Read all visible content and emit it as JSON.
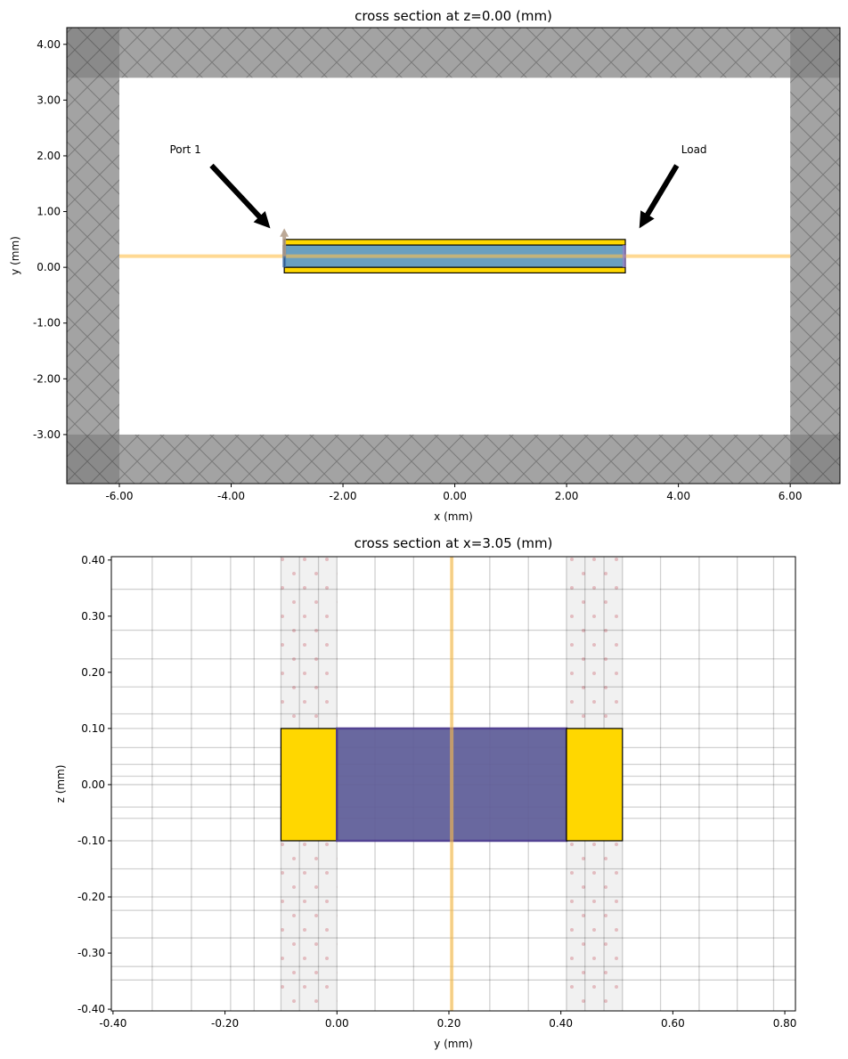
{
  "chart_data": [
    {
      "type": "diagram",
      "title": "cross section at z=0.00 (mm)",
      "xlabel": "x (mm)",
      "ylabel": "y (mm)",
      "xlim": [
        -6.94,
        6.89
      ],
      "ylim": [
        -3.88,
        4.3
      ],
      "xticks": [
        "-6.00",
        "-4.00",
        "-2.00",
        "0.00",
        "2.00",
        "4.00",
        "6.00"
      ],
      "xtick_values": [
        -6,
        -4,
        -2,
        0,
        2,
        4,
        6
      ],
      "yticks": [
        "4.00",
        "3.00",
        "2.00",
        "1.00",
        "0.00",
        "-1.00",
        "-2.00",
        "-3.00"
      ],
      "ytick_values": [
        4,
        3,
        2,
        1,
        0,
        -1,
        -2,
        -3
      ],
      "pml_boundary": {
        "x": [
          -6.0,
          6.0
        ],
        "y": [
          -3.0,
          3.4
        ]
      },
      "structures": [
        {
          "name": "top conductor",
          "x": [
            -3.05,
            3.05
          ],
          "y": [
            0.4,
            0.5
          ],
          "color": "#ffd700"
        },
        {
          "name": "substrate",
          "x": [
            -3.05,
            3.05
          ],
          "y": [
            0.0,
            0.4
          ],
          "color": "#6a9fbf"
        },
        {
          "name": "bottom conductor",
          "x": [
            -3.05,
            3.05
          ],
          "y": [
            -0.1,
            0.0
          ],
          "color": "#ffd700"
        }
      ],
      "monitor_line_y": 0.2,
      "annotations": [
        {
          "text": "Port 1",
          "text_at": [
            -5.1,
            2.05
          ],
          "arrow_to": [
            -3.3,
            0.7
          ]
        },
        {
          "text": "Load",
          "text_at": [
            4.05,
            2.05
          ],
          "arrow_to": [
            3.3,
            0.7
          ]
        }
      ],
      "port_x": -3.05
    },
    {
      "type": "diagram",
      "title": "cross section at x=3.05 (mm)",
      "xlabel": "y (mm)",
      "ylabel": "z (mm)",
      "xlim": [
        -0.403,
        0.819
      ],
      "ylim": [
        -0.403,
        0.406
      ],
      "xticks": [
        "-0.40",
        "-0.20",
        "0.00",
        "0.20",
        "0.40",
        "0.60",
        "0.80"
      ],
      "xtick_values": [
        -0.4,
        -0.2,
        0,
        0.2,
        0.4,
        0.6,
        0.8
      ],
      "yticks": [
        "0.40",
        "0.30",
        "0.20",
        "0.10",
        "0.00",
        "-0.10",
        "-0.20",
        "-0.30",
        "-0.40"
      ],
      "ytick_values": [
        0.4,
        0.3,
        0.2,
        0.1,
        0,
        -0.1,
        -0.2,
        -0.3,
        -0.4
      ],
      "grid_x": [
        -0.33,
        -0.26,
        -0.19,
        -0.148,
        -0.1,
        -0.067,
        -0.033,
        0,
        0.068,
        0.137,
        0.205,
        0.273,
        0.342,
        0.41,
        0.443,
        0.477,
        0.51,
        0.578,
        0.647,
        0.715,
        0.78
      ],
      "grid_z": [
        0.348,
        0.275,
        0.224,
        0.174,
        0.126,
        0.1,
        0.066,
        0.036,
        0.015,
        0,
        -0.04,
        -0.06,
        -0.1,
        -0.15,
        -0.2,
        -0.224,
        -0.273,
        -0.324,
        -0.348
      ],
      "pec_strips": [
        [
          -0.1,
          0.0
        ],
        [
          0.41,
          0.51
        ]
      ],
      "structures": [
        {
          "name": "left conductor",
          "y": [
            -0.1,
            0.0
          ],
          "z": [
            -0.1,
            0.1
          ],
          "color": "#ffd700"
        },
        {
          "name": "substrate",
          "y": [
            0.0,
            0.41
          ],
          "z": [
            -0.1,
            0.1
          ],
          "color": "#62609a"
        },
        {
          "name": "right conductor",
          "y": [
            0.41,
            0.51
          ],
          "z": [
            -0.1,
            0.1
          ],
          "color": "#ffd700"
        }
      ],
      "monitor_line_y": 0.205
    }
  ]
}
